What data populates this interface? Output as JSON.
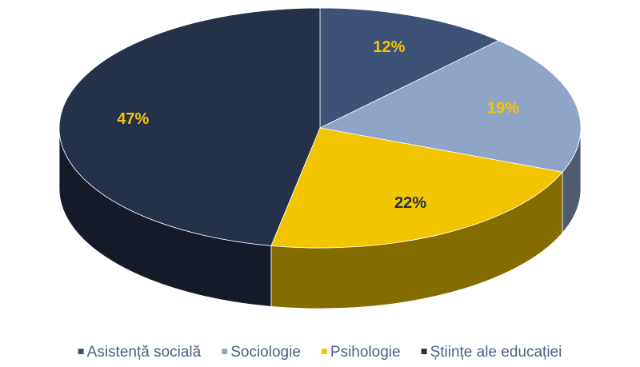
{
  "chart_data": {
    "type": "pie",
    "categories": [
      "Asistență socială",
      "Sociologie",
      "Psihologie",
      "Științe ale educației"
    ],
    "values": [
      12,
      19,
      22,
      47
    ],
    "value_labels": [
      "12%",
      "19%",
      "22%",
      "47%"
    ],
    "colors": [
      "#3d5277",
      "#8fa5c8",
      "#f2c500",
      "#253049"
    ],
    "label_colors": [
      "#f2c500",
      "#f2c500",
      "#253049",
      "#f2c500"
    ],
    "legend": "bottom"
  }
}
